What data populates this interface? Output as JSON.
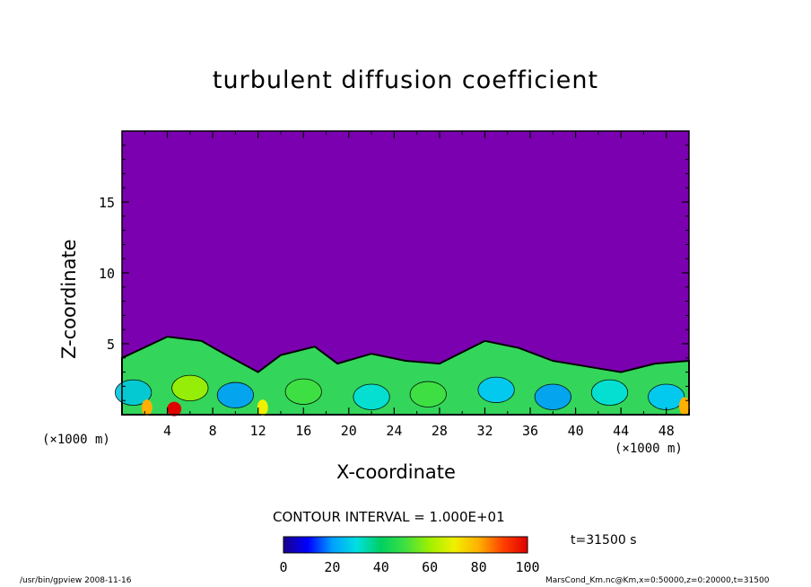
{
  "chart_data": {
    "type": "heatmap",
    "title": "turbulent diffusion coefficient",
    "xlabel": "X-coordinate",
    "ylabel": "Z-coordinate",
    "x_unit": "(×1000 m)",
    "xlim": [
      0,
      50
    ],
    "ylim": [
      0,
      20
    ],
    "x_ticks": [
      4,
      8,
      12,
      16,
      20,
      24,
      28,
      32,
      36,
      40,
      44,
      48
    ],
    "y_ticks": [
      5,
      10,
      15
    ],
    "contour_interval": "CONTOUR INTERVAL = 1.000E+01",
    "time_label": "t=31500 s",
    "colorbar": {
      "min": 0,
      "max": 100,
      "ticks": [
        0,
        20,
        40,
        60,
        80,
        100
      ],
      "colors": [
        "#1a008c",
        "#0000ff",
        "#00a0ff",
        "#00e0e0",
        "#00d060",
        "#40e040",
        "#a0f000",
        "#f0f000",
        "#ffb000",
        "#ff4000",
        "#e00000"
      ]
    },
    "background_color": "#7b00b0",
    "boundary_layer_top_m": [
      4000,
      5500,
      5200,
      4300,
      3000,
      4200,
      4800,
      3600,
      4300,
      3800,
      3600,
      5200,
      4700,
      3800,
      3400,
      3000,
      3600,
      3800
    ],
    "boundary_layer_x_km": [
      0,
      4,
      7,
      9,
      12,
      14,
      17,
      19,
      22,
      25,
      28,
      32,
      35,
      38,
      41,
      44,
      47,
      50
    ]
  },
  "footer": {
    "left": "/usr/bin/gpview   2008-11-16",
    "right": "MarsCond_Km.nc@Km,x=0:50000,z=0:20000,t=31500"
  }
}
